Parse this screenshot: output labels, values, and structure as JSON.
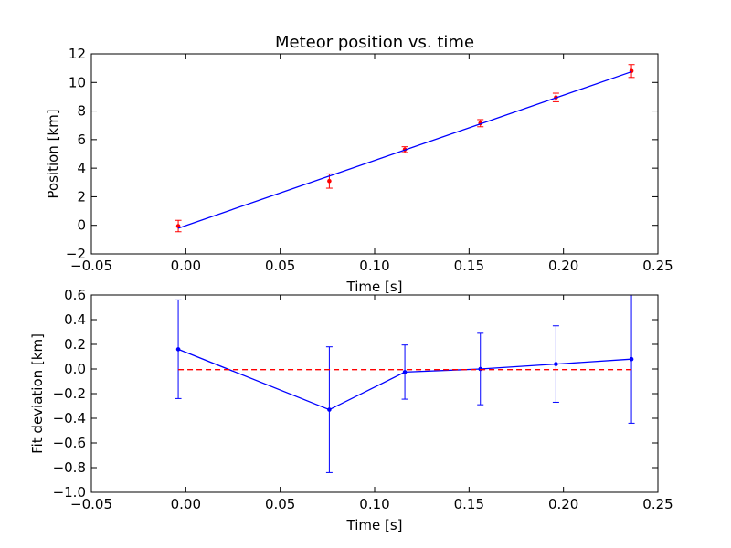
{
  "chart_data": [
    {
      "type": "line",
      "title": "Meteor position vs. time",
      "xlabel": "Time [s]",
      "ylabel": "Position [km]",
      "xlim": [
        -0.05,
        0.25
      ],
      "ylim": [
        -2,
        12
      ],
      "xticks": [
        "−0.05",
        "0.00",
        "0.05",
        "0.10",
        "0.15",
        "0.20",
        "0.25"
      ],
      "yticks": [
        "−2",
        "0",
        "2",
        "4",
        "6",
        "8",
        "10",
        "12"
      ],
      "grid": false,
      "series": [
        {
          "style": "points-with-errorbars",
          "color": "#ff0000",
          "x": [
            -0.004,
            0.076,
            0.116,
            0.156,
            0.196,
            0.236
          ],
          "y": [
            -0.05,
            3.1,
            5.3,
            7.15,
            8.95,
            10.8
          ],
          "yerr": [
            0.4,
            0.5,
            0.2,
            0.25,
            0.3,
            0.45
          ]
        },
        {
          "style": "fit-line",
          "color": "#0000ff",
          "x": [
            -0.004,
            0.236
          ],
          "y": [
            -0.2,
            10.75
          ]
        }
      ]
    },
    {
      "type": "line",
      "title": "",
      "xlabel": "Time [s]",
      "ylabel": "Fit deviation [km]",
      "xlim": [
        -0.05,
        0.25
      ],
      "ylim": [
        -1.0,
        0.6
      ],
      "xticks": [
        "−0.05",
        "0.00",
        "0.05",
        "0.10",
        "0.15",
        "0.20",
        "0.25"
      ],
      "yticks": [
        "−1.0",
        "−0.8",
        "−0.6",
        "−0.4",
        "−0.2",
        "0.0",
        "0.2",
        "0.4",
        "0.6"
      ],
      "grid": false,
      "series": [
        {
          "style": "line-with-errorbars",
          "color": "#0000ff",
          "x": [
            -0.004,
            0.076,
            0.116,
            0.156,
            0.196,
            0.236
          ],
          "y": [
            0.16,
            -0.33,
            -0.025,
            0.0,
            0.04,
            0.08
          ],
          "yerr": [
            0.4,
            0.51,
            0.22,
            0.29,
            0.31,
            0.52
          ]
        },
        {
          "style": "dashed-reference",
          "color": "#ff0000",
          "x": [
            -0.004,
            0.236
          ],
          "y": [
            -0.005,
            -0.005
          ]
        }
      ]
    }
  ]
}
